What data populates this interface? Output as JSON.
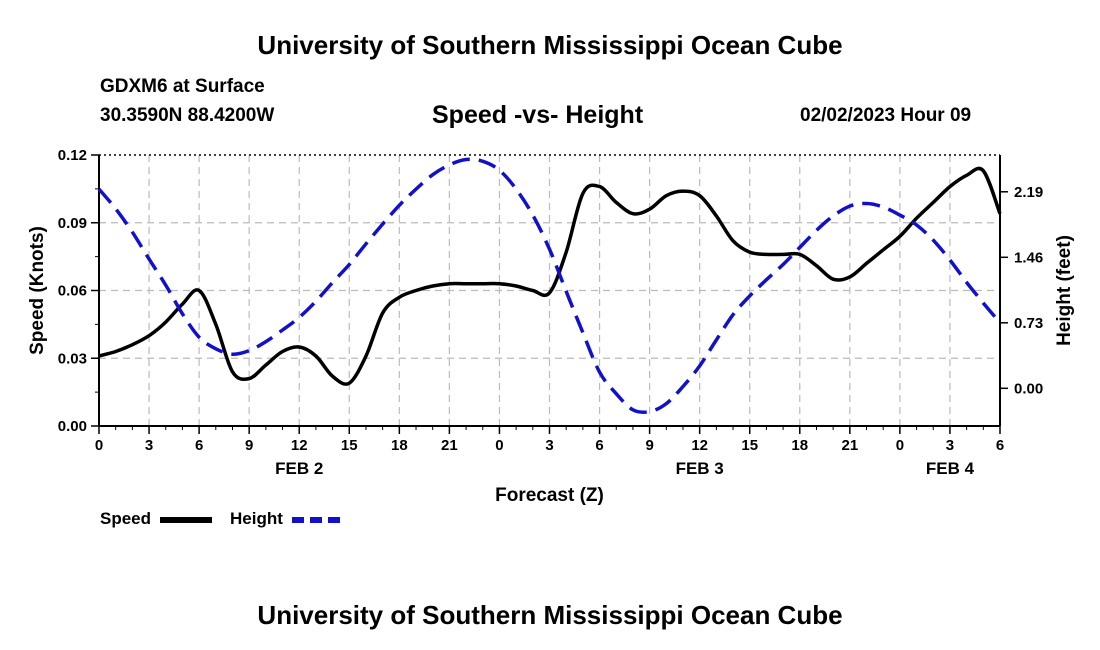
{
  "header": {
    "title_top": "University of Southern Mississippi Ocean Cube",
    "station": "GDXM6 at Surface",
    "coords": "30.3590N  88.4200W",
    "datetime": "02/02/2023 Hour 09",
    "title_bottom": "University of Southern Mississippi Ocean Cube"
  },
  "legend": {
    "speed_label": "Speed",
    "height_label": "Height"
  },
  "colors": {
    "speed": "#000000",
    "height": "#1111cc",
    "grid": "#bbbbbb"
  },
  "chart_data": {
    "type": "line",
    "title": "Speed -vs- Height",
    "xlabel": "Forecast (Z)",
    "ylabel": "Speed (Knots)",
    "y2label": "Height (feet)",
    "x_range": [
      0,
      54
    ],
    "x_ticks": [
      0,
      3,
      6,
      9,
      12,
      15,
      18,
      21,
      24,
      27,
      30,
      33,
      36,
      39,
      42,
      45,
      48,
      51,
      54
    ],
    "x_tick_labels": [
      "0",
      "3",
      "6",
      "9",
      "12",
      "15",
      "18",
      "21",
      "0",
      "3",
      "6",
      "9",
      "12",
      "15",
      "18",
      "21",
      "0",
      "3",
      "6"
    ],
    "date_labels": [
      {
        "text": "FEB 2",
        "x": 12
      },
      {
        "text": "FEB 3",
        "x": 36
      },
      {
        "text": "FEB 4",
        "x": 51
      }
    ],
    "ylim": [
      0,
      0.12
    ],
    "y_ticks": [
      0,
      0.03,
      0.06,
      0.09,
      0.12
    ],
    "y_tick_labels": [
      "0.00",
      "0.03",
      "0.06",
      "0.09",
      "0.12"
    ],
    "y2lim": [
      -0.42,
      2.6
    ],
    "y2_ticks": [
      0.0,
      0.73,
      1.46,
      2.19
    ],
    "y2_tick_labels": [
      "0.00",
      "0.73",
      "1.46",
      "2.19"
    ],
    "series": [
      {
        "name": "Speed",
        "axis": "left",
        "style": "solid",
        "x": [
          0,
          1,
          2,
          3,
          4,
          5,
          6,
          7,
          8,
          9,
          10,
          11,
          12,
          13,
          14,
          15,
          16,
          17,
          18,
          19,
          20,
          21,
          22,
          23,
          24,
          25,
          26,
          27,
          28,
          29,
          30,
          31,
          32,
          33,
          34,
          35,
          36,
          37,
          38,
          39,
          40,
          41,
          42,
          43,
          44,
          45,
          46,
          47,
          48,
          49,
          50,
          51,
          52,
          53,
          54
        ],
        "values": [
          0.031,
          0.033,
          0.036,
          0.04,
          0.046,
          0.054,
          0.06,
          0.045,
          0.024,
          0.021,
          0.027,
          0.033,
          0.035,
          0.031,
          0.022,
          0.019,
          0.031,
          0.05,
          0.057,
          0.06,
          0.062,
          0.063,
          0.063,
          0.063,
          0.063,
          0.062,
          0.06,
          0.059,
          0.077,
          0.103,
          0.106,
          0.099,
          0.094,
          0.096,
          0.102,
          0.104,
          0.102,
          0.093,
          0.082,
          0.077,
          0.076,
          0.076,
          0.076,
          0.071,
          0.065,
          0.066,
          0.072,
          0.078,
          0.084,
          0.092,
          0.099,
          0.106,
          0.111,
          0.113,
          0.094
        ]
      },
      {
        "name": "Height",
        "axis": "right",
        "style": "dashed",
        "x": [
          0,
          1,
          2,
          3,
          4,
          5,
          6,
          7,
          8,
          9,
          10,
          11,
          12,
          13,
          14,
          15,
          16,
          17,
          18,
          19,
          20,
          21,
          22,
          23,
          24,
          25,
          26,
          27,
          28,
          29,
          30,
          31,
          32,
          33,
          34,
          35,
          36,
          37,
          38,
          39,
          40,
          41,
          42,
          43,
          44,
          45,
          46,
          47,
          48,
          49,
          50,
          51,
          52,
          53,
          54
        ],
        "values": [
          2.22,
          2.0,
          1.74,
          1.44,
          1.15,
          0.83,
          0.57,
          0.44,
          0.38,
          0.42,
          0.52,
          0.65,
          0.79,
          0.97,
          1.18,
          1.38,
          1.61,
          1.83,
          2.04,
          2.22,
          2.38,
          2.49,
          2.55,
          2.53,
          2.43,
          2.22,
          1.93,
          1.55,
          1.08,
          0.62,
          0.18,
          -0.06,
          -0.24,
          -0.26,
          -0.17,
          0.02,
          0.25,
          0.54,
          0.82,
          1.03,
          1.21,
          1.38,
          1.57,
          1.76,
          1.92,
          2.03,
          2.06,
          2.02,
          1.93,
          1.82,
          1.65,
          1.43,
          1.18,
          0.95,
          0.73
        ]
      }
    ]
  }
}
